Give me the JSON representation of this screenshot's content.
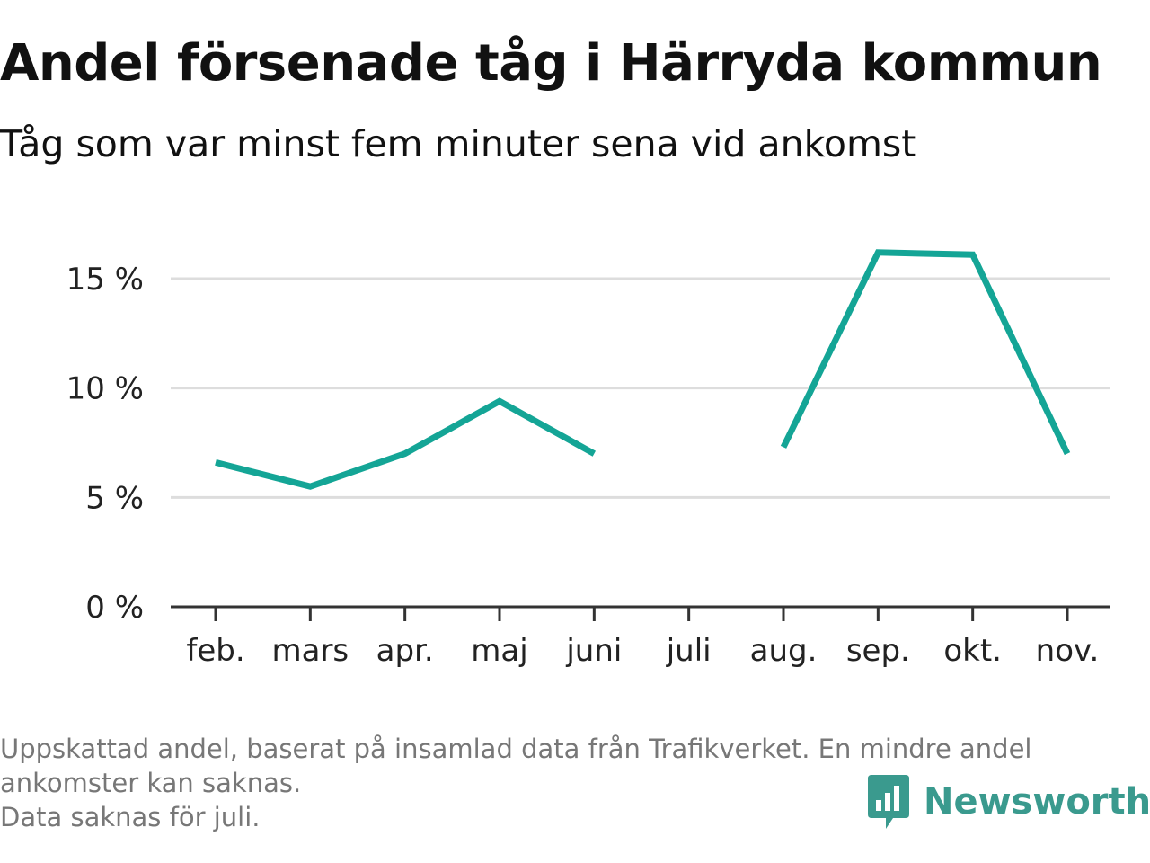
{
  "title": "Andel försenade tåg i Härryda kommun",
  "subtitle": "Tåg som var minst fem minuter sena vid ankomst",
  "footer": {
    "note_line1": "Uppskattad andel, baserat på insamlad data från Trafikverket. En mindre andel",
    "note_line2": "ankomster kan saknas.",
    "note_line3": "Data saknas för juli."
  },
  "brand": {
    "name": "Newsworthy",
    "color": "#3a9a8e"
  },
  "colors": {
    "line": "#14a596",
    "grid": "#dddddd",
    "axis": "#333333"
  },
  "chart_data": {
    "type": "line",
    "title": "Andel försenade tåg i Härryda kommun",
    "subtitle": "Tåg som var minst fem minuter sena vid ankomst",
    "xlabel": "",
    "ylabel": "",
    "categories": [
      "feb.",
      "mars",
      "apr.",
      "maj",
      "juni",
      "juli",
      "aug.",
      "sep.",
      "okt.",
      "nov."
    ],
    "series": [
      {
        "values": [
          6.6,
          5.5,
          7.0,
          9.4,
          7.0,
          null,
          7.3,
          16.2,
          16.1,
          7.0
        ]
      }
    ],
    "ylim": [
      0,
      17
    ],
    "yticks": [
      0,
      5,
      10,
      15
    ],
    "ytick_labels": [
      "0 %",
      "5 %",
      "10 %",
      "15 %"
    ],
    "grid": true,
    "legend": "none"
  }
}
